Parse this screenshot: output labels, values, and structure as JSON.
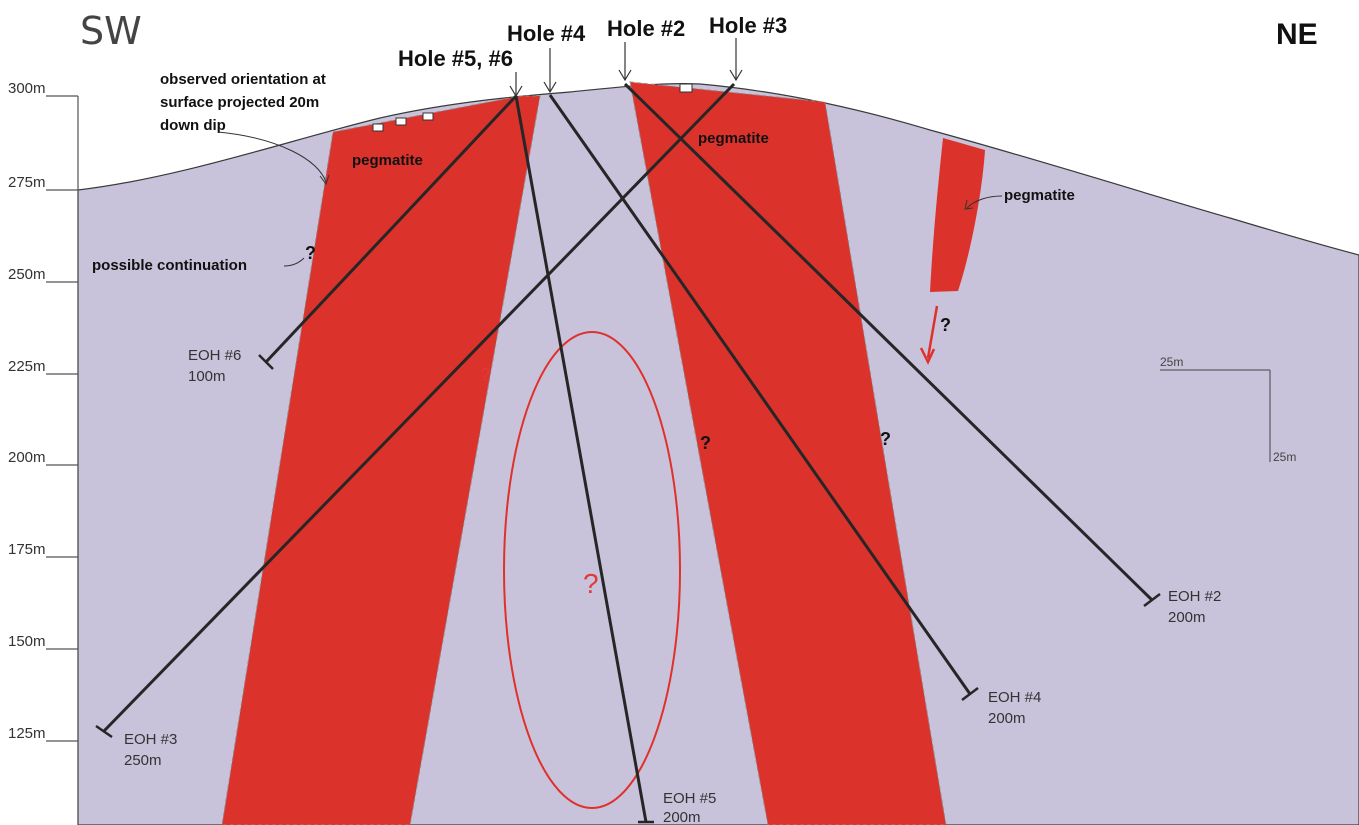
{
  "directions": {
    "left": "SW",
    "right": "NE"
  },
  "elevations": [
    "300m",
    "275m",
    "250m",
    "225m",
    "200m",
    "175m",
    "150m",
    "125m"
  ],
  "holes": {
    "h56": "Hole #5, #6",
    "h4": "Hole #4",
    "h2": "Hole #2",
    "h3": "Hole #3"
  },
  "eoh": {
    "h6": {
      "label": "EOH #6",
      "depth": "100m"
    },
    "h3": {
      "label": "EOH #3",
      "depth": "250m"
    },
    "h5": {
      "label": "EOH #5",
      "depth": "200m"
    },
    "h4": {
      "label": "EOH #4",
      "depth": "200m"
    },
    "h2": {
      "label": "EOH #2",
      "depth": "200m"
    }
  },
  "annotations": {
    "observed_line1": "observed orientation at",
    "observed_line2": "surface projected 20m",
    "observed_line3": "down dip",
    "possible_continuation": "possible continuation",
    "pegmatite": "pegmatite",
    "question": "?"
  },
  "scale_bar": {
    "horizontal": "25m",
    "vertical": "25m"
  },
  "colors": {
    "pegmatite": "#dc322c",
    "host_rock": "#c8c3da",
    "drill_hole": "#262626",
    "target_ellipse": "#e0302c",
    "question_red": "#e03a3a"
  }
}
